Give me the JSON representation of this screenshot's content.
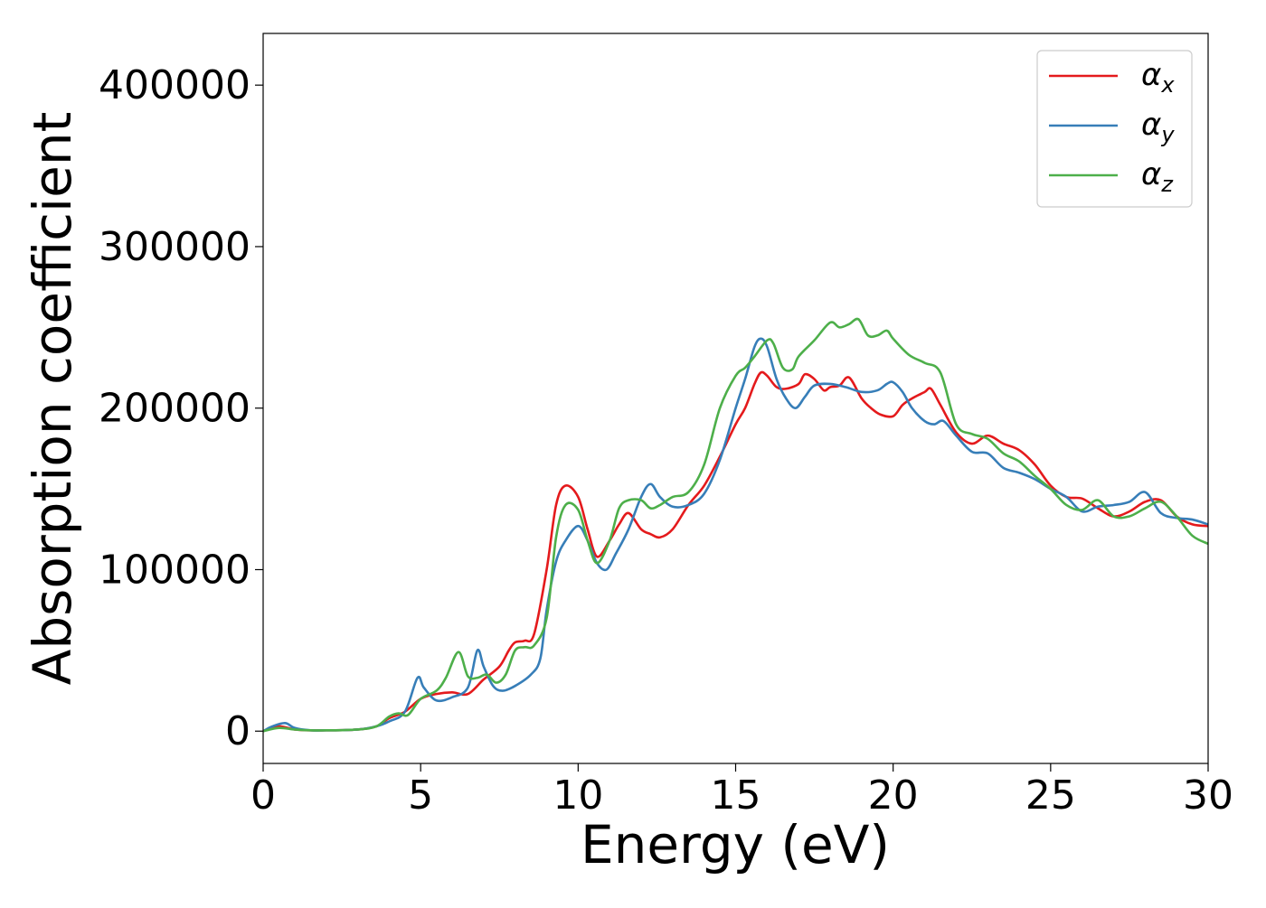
{
  "chart_data": {
    "type": "line",
    "title": "",
    "xlabel": "Energy (eV)",
    "ylabel": "Absorption coefficient",
    "xlim": [
      0,
      30
    ],
    "ylim": [
      -20000,
      432000
    ],
    "xticks": [
      0,
      5,
      10,
      15,
      20,
      25,
      30
    ],
    "yticks": [
      0,
      100000,
      200000,
      300000,
      400000
    ],
    "grid": false,
    "legend_position": "top-right",
    "series": [
      {
        "name": "α_x",
        "label_main": "α",
        "label_sub": "x",
        "color": "#e41a1c",
        "x": [
          0,
          0.5,
          1,
          1.5,
          2,
          3,
          3.6,
          4,
          4.5,
          5,
          5.5,
          6,
          6.5,
          7,
          7.5,
          7.8,
          8,
          8.3,
          8.6,
          9,
          9.3,
          9.6,
          10,
          10.3,
          10.6,
          11,
          11.3,
          11.6,
          12,
          12.3,
          12.6,
          13,
          13.5,
          14,
          14.5,
          15,
          15.3,
          15.6,
          15.8,
          16,
          16.3,
          16.6,
          17,
          17.2,
          17.5,
          17.8,
          18,
          18.3,
          18.6,
          19,
          19.3,
          19.6,
          20,
          20.3,
          20.6,
          21,
          21.2,
          21.5,
          22,
          22.5,
          23,
          23.5,
          24,
          24.5,
          25,
          25.5,
          26,
          26.5,
          27,
          27.5,
          28,
          28.5,
          29,
          29.5,
          30
        ],
        "values": [
          0,
          3000,
          1000,
          500,
          500,
          1000,
          3000,
          8000,
          12000,
          20000,
          23000,
          24000,
          23000,
          32000,
          40000,
          50000,
          55000,
          56000,
          60000,
          100000,
          140000,
          152000,
          145000,
          125000,
          108000,
          118000,
          128000,
          135000,
          125000,
          122000,
          120000,
          125000,
          140000,
          152000,
          170000,
          190000,
          200000,
          215000,
          222000,
          220000,
          213000,
          212000,
          215000,
          221000,
          218000,
          211000,
          213000,
          214000,
          219000,
          206000,
          200000,
          196000,
          195000,
          202000,
          206000,
          210000,
          212000,
          202000,
          185000,
          178000,
          183000,
          178000,
          174000,
          165000,
          152000,
          145000,
          144000,
          138000,
          133000,
          136000,
          142000,
          143000,
          133000,
          128000,
          127000
        ]
      },
      {
        "name": "α_y",
        "label_main": "α",
        "label_sub": "y",
        "color": "#377eb8",
        "x": [
          0,
          0.3,
          0.7,
          1,
          1.5,
          2,
          3,
          3.6,
          4,
          4.5,
          4.9,
          5.1,
          5.5,
          6,
          6.5,
          6.8,
          7,
          7.3,
          7.6,
          8,
          8.5,
          8.8,
          9,
          9.3,
          9.6,
          10,
          10.3,
          10.6,
          10.9,
          11.2,
          11.6,
          12,
          12.3,
          12.6,
          13,
          13.5,
          14,
          14.5,
          15,
          15.3,
          15.6,
          15.8,
          16,
          16.3,
          16.6,
          16.9,
          17.2,
          17.5,
          18,
          18.5,
          19,
          19.5,
          19.8,
          20,
          20.3,
          20.6,
          21,
          21.3,
          21.6,
          22,
          22.5,
          23,
          23.5,
          24,
          24.5,
          25,
          25.5,
          26,
          26.5,
          27,
          27.5,
          28,
          28.5,
          29,
          29.5,
          30
        ],
        "values": [
          0,
          3000,
          5000,
          2000,
          500,
          500,
          1000,
          3000,
          6000,
          12000,
          33000,
          27000,
          19000,
          21000,
          27000,
          50000,
          40000,
          28000,
          25000,
          28000,
          35000,
          45000,
          75000,
          105000,
          118000,
          127000,
          118000,
          104000,
          100000,
          110000,
          125000,
          145000,
          153000,
          145000,
          139000,
          140000,
          147000,
          168000,
          200000,
          218000,
          238000,
          243000,
          238000,
          218000,
          206000,
          200000,
          207000,
          214000,
          215000,
          213000,
          210000,
          211000,
          215000,
          216000,
          210000,
          200000,
          192000,
          190000,
          192000,
          183000,
          173000,
          172000,
          163000,
          160000,
          156000,
          150000,
          145000,
          136000,
          139000,
          140000,
          142000,
          148000,
          135000,
          132000,
          131000,
          128000
        ]
      },
      {
        "name": "α_z",
        "label_main": "α",
        "label_sub": "z",
        "color": "#4daf4a",
        "x": [
          0,
          0.5,
          1,
          1.5,
          2,
          3,
          3.6,
          4,
          4.3,
          4.6,
          5,
          5.5,
          5.8,
          6.2,
          6.5,
          6.8,
          7.1,
          7.4,
          7.7,
          8,
          8.3,
          8.6,
          9,
          9.3,
          9.6,
          10,
          10.3,
          10.6,
          11,
          11.3,
          11.6,
          12,
          12.3,
          12.6,
          13,
          13.5,
          14,
          14.5,
          15,
          15.3,
          15.6,
          16,
          16.2,
          16.5,
          16.8,
          17,
          17.5,
          18,
          18.3,
          18.6,
          18.9,
          19.2,
          19.5,
          19.8,
          20,
          20.5,
          21,
          21.5,
          22,
          22.5,
          23,
          23.5,
          24,
          24.5,
          25,
          25.5,
          26,
          26.5,
          27,
          27.5,
          28,
          28.5,
          29,
          29.5,
          30
        ],
        "values": [
          0,
          2000,
          1000,
          500,
          500,
          1000,
          3000,
          9000,
          11000,
          10000,
          20000,
          25000,
          33000,
          49000,
          34000,
          33000,
          35000,
          30000,
          35000,
          50000,
          52000,
          53000,
          70000,
          120000,
          140000,
          137000,
          118000,
          104000,
          118000,
          138000,
          143000,
          143000,
          138000,
          140000,
          145000,
          148000,
          165000,
          200000,
          220000,
          225000,
          232000,
          242000,
          240000,
          225000,
          224000,
          232000,
          242000,
          253000,
          250000,
          252000,
          255000,
          245000,
          245000,
          248000,
          243000,
          233000,
          228000,
          222000,
          190000,
          184000,
          181000,
          172000,
          167000,
          158000,
          150000,
          140000,
          137000,
          143000,
          133000,
          133000,
          138000,
          142000,
          133000,
          121000,
          116000
        ]
      }
    ]
  }
}
